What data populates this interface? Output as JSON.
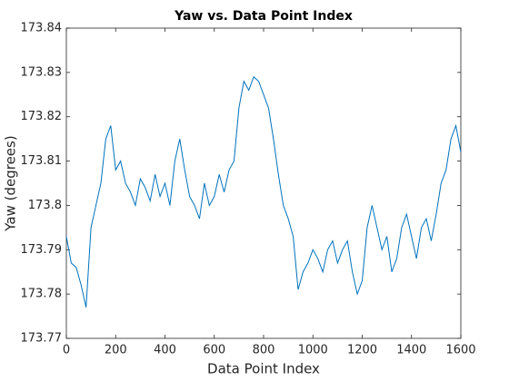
{
  "chart_data": {
    "type": "line",
    "title": "Yaw vs. Data Point Index",
    "x_label": "Data Point Index",
    "y_label": "Yaw (degrees)",
    "xlim": [
      0,
      1600
    ],
    "xticks": [
      0,
      200,
      400,
      600,
      800,
      1000,
      1200,
      1400,
      1600
    ],
    "ylim": [
      173.77,
      173.84
    ],
    "yticks": [
      173.77,
      173.78,
      173.79,
      173.8,
      173.81,
      173.82,
      173.83,
      173.84
    ],
    "grid": false,
    "series": [
      {
        "name": "Yaw",
        "color": "#0072bd",
        "x": [
          0,
          20,
          40,
          60,
          80,
          100,
          120,
          140,
          160,
          180,
          200,
          220,
          240,
          260,
          280,
          300,
          320,
          340,
          360,
          380,
          400,
          420,
          440,
          460,
          480,
          500,
          520,
          540,
          560,
          580,
          600,
          620,
          640,
          660,
          680,
          700,
          720,
          740,
          760,
          780,
          800,
          820,
          840,
          860,
          880,
          900,
          920,
          940,
          960,
          980,
          1000,
          1020,
          1040,
          1060,
          1080,
          1100,
          1120,
          1140,
          1160,
          1180,
          1200,
          1220,
          1240,
          1260,
          1280,
          1300,
          1320,
          1340,
          1360,
          1380,
          1400,
          1420,
          1440,
          1460,
          1480,
          1500,
          1520,
          1540,
          1560,
          1580,
          1600
        ],
        "values": [
          173.793,
          173.787,
          173.786,
          173.782,
          173.777,
          173.795,
          173.8,
          173.805,
          173.815,
          173.818,
          173.808,
          173.81,
          173.805,
          173.803,
          173.8,
          173.806,
          173.804,
          173.801,
          173.807,
          173.802,
          173.805,
          173.8,
          173.81,
          173.815,
          173.808,
          173.802,
          173.8,
          173.797,
          173.805,
          173.8,
          173.802,
          173.807,
          173.803,
          173.808,
          173.81,
          173.822,
          173.828,
          173.826,
          173.829,
          173.828,
          173.825,
          173.822,
          173.815,
          173.807,
          173.8,
          173.797,
          173.793,
          173.781,
          173.785,
          173.787,
          173.79,
          173.788,
          173.785,
          173.79,
          173.792,
          173.787,
          173.79,
          173.792,
          173.785,
          173.78,
          173.783,
          173.795,
          173.8,
          173.795,
          173.79,
          173.793,
          173.785,
          173.788,
          173.795,
          173.798,
          173.793,
          173.788,
          173.795,
          173.797,
          173.792,
          173.798,
          173.805,
          173.808,
          173.815,
          173.818,
          173.812
        ]
      }
    ]
  }
}
